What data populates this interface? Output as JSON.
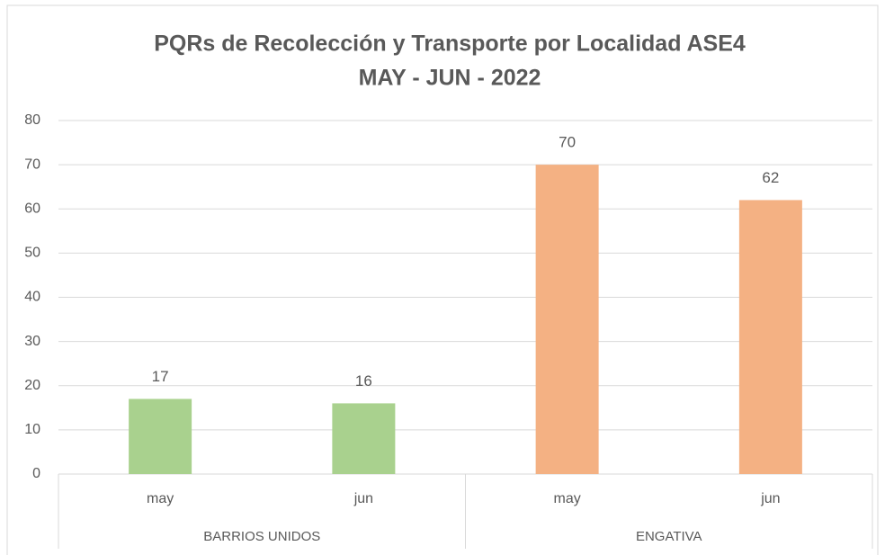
{
  "chart_data": {
    "type": "bar",
    "title": [
      "PQRs de Recolección y Transporte por Localidad ASE4",
      "MAY - JUN - 2022"
    ],
    "categories": [
      "may",
      "jun",
      "may",
      "jun"
    ],
    "groups": [
      {
        "name": "BARRIOS UNIDOS",
        "span": 2
      },
      {
        "name": "ENGATIVA",
        "span": 2
      }
    ],
    "values": [
      17,
      16,
      70,
      62
    ],
    "colors": [
      "#a9d18e",
      "#a9d18e",
      "#f4b183",
      "#f4b183"
    ],
    "ylim": [
      0,
      80
    ],
    "yticks": [
      0,
      10,
      20,
      30,
      40,
      50,
      60,
      70,
      80
    ],
    "grid": true
  }
}
